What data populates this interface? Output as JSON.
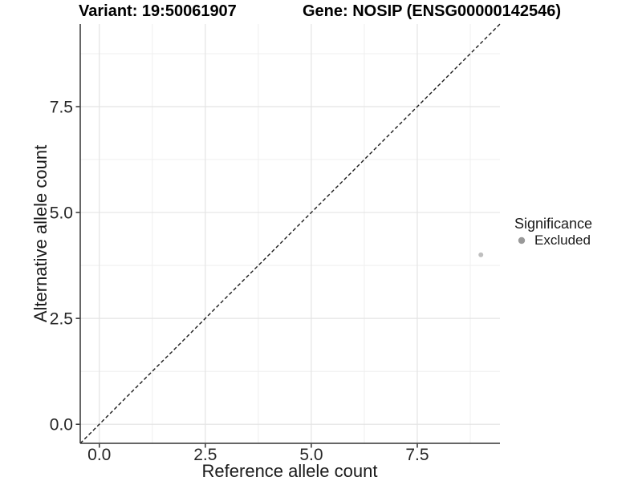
{
  "header": {
    "variant_title": "Variant: 19:50061907",
    "gene_title": "Gene: NOSIP (ENSG00000142546)"
  },
  "axes": {
    "x_title": "Reference allele count",
    "y_title": "Alternative allele count"
  },
  "legend": {
    "title": "Significance",
    "items": [
      {
        "label": "Excluded",
        "swatch_color": "#999999"
      }
    ]
  },
  "chart_data": {
    "type": "scatter",
    "title": "Variant: 19:50061907   Gene: NOSIP (ENSG00000142546)",
    "xlabel": "Reference allele count",
    "ylabel": "Alternative allele count",
    "xlim": [
      -0.45,
      9.45
    ],
    "ylim": [
      -0.45,
      9.45
    ],
    "x_ticks": [
      0.0,
      2.5,
      5.0,
      7.5
    ],
    "y_ticks": [
      0.0,
      2.5,
      5.0,
      7.5
    ],
    "x_minor_ticks": [
      1.25,
      3.75,
      6.25,
      8.75
    ],
    "y_minor_ticks": [
      1.25,
      3.75,
      6.25,
      8.75
    ],
    "grid": true,
    "legend_position": "right",
    "series": [
      {
        "name": "Excluded",
        "color": "#bfbfbf",
        "point_radius": 3,
        "points": [
          {
            "x": 9,
            "y": 4
          }
        ]
      }
    ],
    "reference_line": {
      "style": "dashed",
      "slope": 1,
      "intercept": 0,
      "color": "#1a1a1a"
    }
  },
  "style_colors": {
    "background": "#ffffff",
    "grid_major": "#e4e4e4",
    "grid_minor": "#efefef",
    "axis_line": "#333333",
    "tick_label": "#262626"
  }
}
